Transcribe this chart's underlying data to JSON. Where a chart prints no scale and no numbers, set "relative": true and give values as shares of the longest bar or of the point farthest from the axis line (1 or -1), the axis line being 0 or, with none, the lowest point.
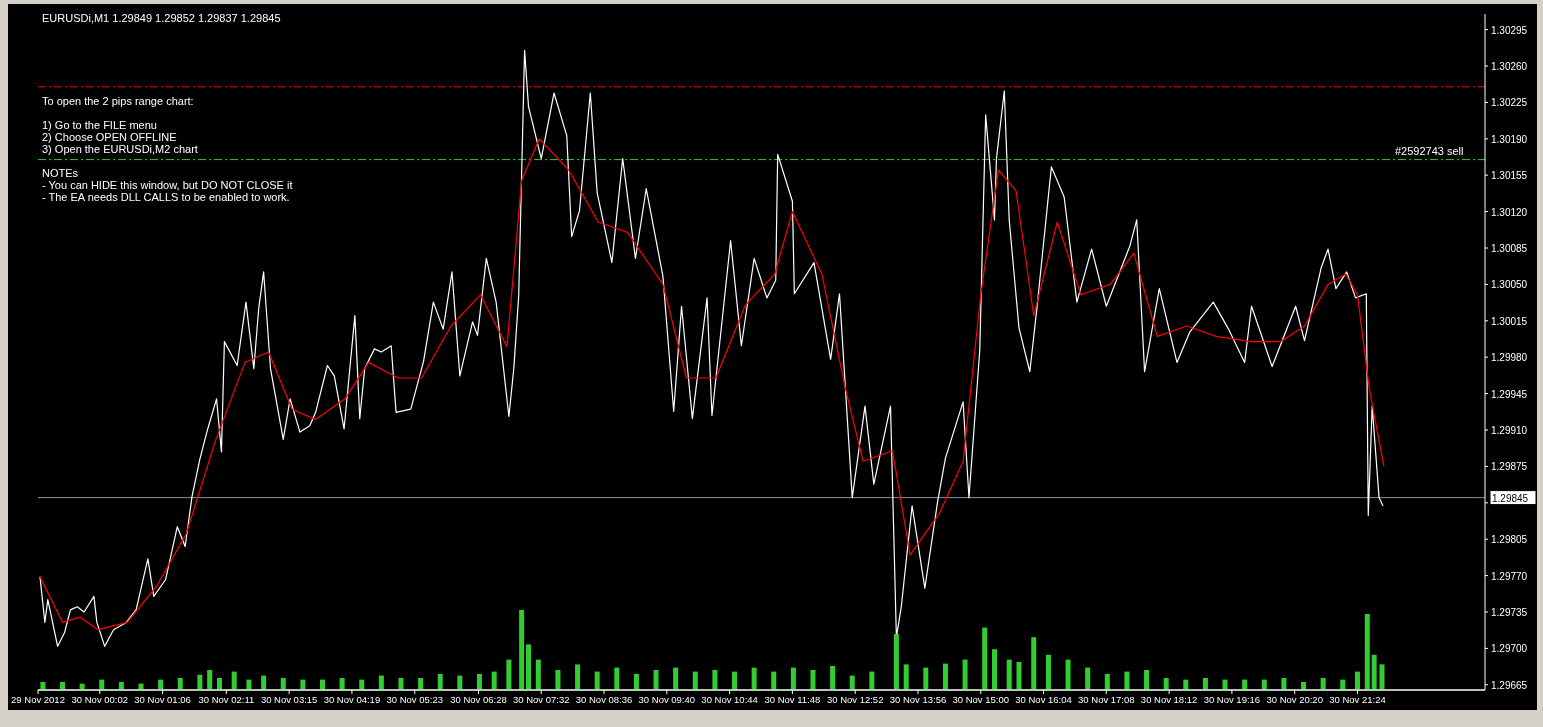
{
  "chart_data": [
    {
      "type": "line",
      "title": "EURUSDi,M1  1.29849 1.29852 1.29837 1.29845",
      "annotations": [
        "To open the 2 pips range chart:",
        "1) Go to the FILE menu",
        "2) Choose OPEN OFFLINE",
        "3) Open the EURUSDi,M2 chart",
        "NOTEs",
        "- You can HIDE this window, but DO NOT CLOSE it",
        "- The EA needs DLL CALLS to be enabled to work."
      ],
      "xlim": [
        "2012-11-29T22:59",
        "2012-11-30T23:34"
      ],
      "xticks": [
        {
          "value": "2012-11-29T22:59",
          "label": "29 Nov 2012"
        },
        {
          "value": "2012-11-30T00:02",
          "label": "30 Nov 00:02"
        },
        {
          "value": "2012-11-30T01:06",
          "label": "30 Nov 01:06"
        },
        {
          "value": "2012-11-30T02:11",
          "label": "30 Nov 02:11"
        },
        {
          "value": "2012-11-30T03:15",
          "label": "30 Nov 03:15"
        },
        {
          "value": "2012-11-30T04:19",
          "label": "30 Nov 04:19"
        },
        {
          "value": "2012-11-30T05:23",
          "label": "30 Nov 05:23"
        },
        {
          "value": "2012-11-30T06:28",
          "label": "30 Nov 06:28"
        },
        {
          "value": "2012-11-30T07:32",
          "label": "30 Nov 07:32"
        },
        {
          "value": "2012-11-30T08:36",
          "label": "30 Nov 08:36"
        },
        {
          "value": "2012-11-30T09:40",
          "label": "30 Nov 09:40"
        },
        {
          "value": "2012-11-30T10:44",
          "label": "30 Nov 10:44"
        },
        {
          "value": "2012-11-30T11:48",
          "label": "30 Nov 11:48"
        },
        {
          "value": "2012-11-30T12:52",
          "label": "30 Nov 12:52"
        },
        {
          "value": "2012-11-30T13:56",
          "label": "30 Nov 13:56"
        },
        {
          "value": "2012-11-30T15:00",
          "label": "30 Nov 15:00"
        },
        {
          "value": "2012-11-30T16:04",
          "label": "30 Nov 16:04"
        },
        {
          "value": "2012-11-30T17:08",
          "label": "30 Nov 17:08"
        },
        {
          "value": "2012-11-30T18:12",
          "label": "30 Nov 18:12"
        },
        {
          "value": "2012-11-30T19:16",
          "label": "30 Nov 19:16"
        },
        {
          "value": "2012-11-30T20:20",
          "label": "30 Nov 20:20"
        },
        {
          "value": "2012-11-30T21:24",
          "label": "30 Nov 21:24"
        }
      ],
      "ylim": [
        1.2966,
        1.3031
      ],
      "yticks": [
        1.29665,
        {
          "value": 1.297,
          "label": "1.29700"
        },
        1.29735,
        {
          "value": 1.2977,
          "label": "1.29770"
        },
        1.29805,
        {
          "value": 1.2984,
          "label": null
        },
        1.29875,
        {
          "value": 1.2991,
          "label": "1.29910"
        },
        1.29945,
        {
          "value": 1.2998,
          "label": "1.29980"
        },
        1.30015,
        {
          "value": 1.3005,
          "label": "1.30050"
        },
        1.30085,
        {
          "value": 1.3012,
          "label": "1.30120"
        },
        1.30155,
        {
          "value": 1.3019,
          "label": "1.30190"
        },
        1.30225,
        {
          "value": 1.3026,
          "label": "1.30260"
        },
        1.30295
      ],
      "ref_lines": [
        {
          "axis": "y",
          "value": 1.3024,
          "color": "#ff0000",
          "line_style": "dashdot"
        },
        {
          "axis": "y",
          "value": 1.3017,
          "label": "#2592743 sell",
          "color": "#32cd32",
          "line_style": "dashdot"
        },
        {
          "axis": "y",
          "value": 1.29845,
          "label": "1.29845",
          "color": "#8090a8",
          "line_style": "solid"
        }
      ],
      "grid": false,
      "series": [
        {
          "color": "#ffffff",
          "x": [
            "2012-11-29T23:01",
            "2012-11-29T23:06",
            "2012-11-29T23:09",
            "2012-11-29T23:19",
            "2012-11-29T23:26",
            "2012-11-29T23:32",
            "2012-11-29T23:39",
            "2012-11-29T23:46",
            "2012-11-29T23:56",
            "2012-11-29T23:59",
            "2012-11-30T00:07",
            "2012-11-30T00:16",
            "2012-11-30T00:29",
            "2012-11-30T00:39",
            "2012-11-30T00:51",
            "2012-11-30T00:57",
            "2012-11-30T01:09",
            "2012-11-30T01:21",
            "2012-11-30T01:29",
            "2012-11-30T01:36",
            "2012-11-30T01:44",
            "2012-11-30T01:52",
            "2012-11-30T02:01",
            "2012-11-30T02:06",
            "2012-11-30T02:09",
            "2012-11-30T02:22",
            "2012-11-30T02:31",
            "2012-11-30T02:39",
            "2012-11-30T02:44",
            "2012-11-30T02:49",
            "2012-11-30T02:56",
            "2012-11-30T03:09",
            "2012-11-30T03:16",
            "2012-11-30T03:26",
            "2012-11-30T03:36",
            "2012-11-30T03:42",
            "2012-11-30T03:54",
            "2012-11-30T04:01",
            "2012-11-30T04:11",
            "2012-11-30T04:22",
            "2012-11-30T04:27",
            "2012-11-30T04:32",
            "2012-11-30T04:42",
            "2012-11-30T04:49",
            "2012-11-30T04:59",
            "2012-11-30T05:04",
            "2012-11-30T05:19",
            "2012-11-30T05:32",
            "2012-11-30T05:42",
            "2012-11-30T05:52",
            "2012-11-30T06:01",
            "2012-11-30T06:09",
            "2012-11-30T06:22",
            "2012-11-30T06:27",
            "2012-11-30T06:36",
            "2012-11-30T06:46",
            "2012-11-30T06:59",
            "2012-11-30T07:04",
            "2012-11-30T07:09",
            "2012-11-30T07:15",
            "2012-11-30T07:19",
            "2012-11-30T07:32",
            "2012-11-30T07:45",
            "2012-11-30T07:58",
            "2012-11-30T08:03",
            "2012-11-30T08:11",
            "2012-11-30T08:22",
            "2012-11-30T08:29",
            "2012-11-30T08:44",
            "2012-11-30T08:55",
            "2012-11-30T09:08",
            "2012-11-30T09:19",
            "2012-11-30T09:36",
            "2012-11-30T09:47",
            "2012-11-30T09:55",
            "2012-11-30T10:06",
            "2012-11-30T10:21",
            "2012-11-30T10:26",
            "2012-11-30T10:45",
            "2012-11-30T10:56",
            "2012-11-30T11:09",
            "2012-11-30T11:22",
            "2012-11-30T11:31",
            "2012-11-30T11:33",
            "2012-11-30T11:48",
            "2012-11-30T11:50",
            "2012-11-30T12:10",
            "2012-11-30T12:27",
            "2012-11-30T12:36",
            "2012-11-30T12:49",
            "2012-11-30T13:02",
            "2012-11-30T13:11",
            "2012-11-30T13:28",
            "2012-11-30T13:34",
            "2012-11-30T13:39",
            "2012-11-30T13:50",
            "2012-11-30T14:03",
            "2012-11-30T14:16",
            "2012-11-30T14:24",
            "2012-11-30T14:42",
            "2012-11-30T14:48",
            "2012-11-30T14:59",
            "2012-11-30T15:05",
            "2012-11-30T15:14",
            "2012-11-30T15:16",
            "2012-11-30T15:24",
            "2012-11-30T15:29",
            "2012-11-30T15:39",
            "2012-11-30T15:50",
            "2012-11-30T15:57",
            "2012-11-30T16:12",
            "2012-11-30T16:25",
            "2012-11-30T16:38",
            "2012-11-30T16:53",
            "2012-11-30T17:08",
            "2012-11-30T17:32",
            "2012-11-30T17:39",
            "2012-11-30T17:47",
            "2012-11-30T18:02",
            "2012-11-30T18:20",
            "2012-11-30T18:33",
            "2012-11-30T18:57",
            "2012-11-30T19:12",
            "2012-11-30T19:29",
            "2012-11-30T19:36",
            "2012-11-30T19:57",
            "2012-11-30T20:21",
            "2012-11-30T20:30",
            "2012-11-30T20:47",
            "2012-11-30T20:54",
            "2012-11-30T21:02",
            "2012-11-30T21:13",
            "2012-11-30T21:22",
            "2012-11-30T21:33",
            "2012-11-30T21:35",
            "2012-11-30T21:39",
            "2012-11-30T21:46",
            "2012-11-30T21:50"
          ],
          "values": [
            1.29769,
            1.29725,
            1.29747,
            1.29702,
            1.29715,
            1.29737,
            1.2974,
            1.29735,
            1.2975,
            1.29725,
            1.29702,
            1.29718,
            1.29725,
            1.29737,
            1.29786,
            1.2975,
            1.29766,
            1.29817,
            1.29798,
            1.29846,
            1.29882,
            1.29911,
            1.2994,
            1.29889,
            1.29995,
            1.29972,
            1.30033,
            1.29969,
            1.30027,
            1.30062,
            1.29969,
            1.29901,
            1.2994,
            1.29908,
            1.29914,
            1.29927,
            1.29972,
            1.29962,
            1.29911,
            1.3002,
            1.29921,
            1.29969,
            1.29988,
            1.29985,
            1.29991,
            1.29927,
            1.2993,
            1.29976,
            1.30033,
            1.30007,
            1.30062,
            1.29962,
            1.30014,
            1.30001,
            1.30075,
            1.30033,
            1.29923,
            1.29969,
            1.30039,
            1.30275,
            1.30221,
            1.30171,
            1.30234,
            1.30193,
            1.30096,
            1.30121,
            1.30234,
            1.30138,
            1.30071,
            1.30171,
            1.30075,
            1.30142,
            1.30058,
            1.29928,
            1.30029,
            1.29921,
            1.30037,
            1.29924,
            1.30092,
            1.29991,
            1.30075,
            1.30037,
            1.30054,
            1.30175,
            1.3013,
            1.30041,
            1.30071,
            1.29978,
            1.30041,
            1.29845,
            1.29933,
            1.29858,
            1.29933,
            1.29711,
            1.2974,
            1.29837,
            1.29758,
            1.29841,
            1.29883,
            1.29937,
            1.29845,
            1.29987,
            1.30213,
            1.30112,
            1.30171,
            1.30236,
            1.30112,
            1.30008,
            1.29966,
            1.30025,
            1.30163,
            1.30134,
            1.30033,
            1.30084,
            1.30029,
            1.30087,
            1.30112,
            1.29966,
            1.30046,
            1.29975,
            1.30004,
            1.30033,
            1.30008,
            1.29975,
            1.30029,
            1.29971,
            1.30029,
            1.29996,
            1.30066,
            1.30084,
            1.30046,
            1.30062,
            1.30037,
            1.30041,
            1.29828,
            1.29933,
            1.29845,
            1.29837
          ]
        },
        {
          "color": "#ff0000",
          "x": [
            "2012-11-29T23:01",
            "2012-11-29T23:24",
            "2012-11-29T23:42",
            "2012-11-30T00:00",
            "2012-11-30T00:30",
            "2012-11-30T01:00",
            "2012-11-30T01:30",
            "2012-11-30T02:00",
            "2012-11-30T02:30",
            "2012-11-30T02:54",
            "2012-11-30T03:18",
            "2012-11-30T03:42",
            "2012-11-30T04:12",
            "2012-11-30T04:36",
            "2012-11-30T05:06",
            "2012-11-30T05:30",
            "2012-11-30T06:00",
            "2012-11-30T06:30",
            "2012-11-30T06:57",
            "2012-11-30T07:12",
            "2012-11-30T07:30",
            "2012-11-30T08:00",
            "2012-11-30T08:30",
            "2012-11-30T09:00",
            "2012-11-30T09:36",
            "2012-11-30T10:00",
            "2012-11-30T10:30",
            "2012-11-30T11:00",
            "2012-11-30T11:30",
            "2012-11-30T11:48",
            "2012-11-30T12:18",
            "2012-11-30T12:42",
            "2012-11-30T13:00",
            "2012-11-30T13:30",
            "2012-11-30T13:48",
            "2012-11-30T14:18",
            "2012-11-30T14:42",
            "2012-11-30T15:00",
            "2012-11-30T15:18",
            "2012-11-30T15:36",
            "2012-11-30T15:54",
            "2012-11-30T16:18",
            "2012-11-30T16:42",
            "2012-11-30T17:12",
            "2012-11-30T17:36",
            "2012-11-30T18:00",
            "2012-11-30T18:30",
            "2012-11-30T19:00",
            "2012-11-30T19:36",
            "2012-11-30T20:06",
            "2012-11-30T20:30",
            "2012-11-30T20:54",
            "2012-11-30T21:12",
            "2012-11-30T21:24",
            "2012-11-30T21:36",
            "2012-11-30T21:51"
          ],
          "values": [
            1.29769,
            1.29725,
            1.2973,
            1.29718,
            1.29725,
            1.2976,
            1.2981,
            1.299,
            1.29975,
            1.29985,
            1.2993,
            1.2992,
            1.2994,
            1.29975,
            1.2996,
            1.2996,
            1.3001,
            1.3004,
            1.2999,
            1.3015,
            1.3019,
            1.3016,
            1.3011,
            1.301,
            1.3005,
            1.2996,
            1.2996,
            1.3003,
            1.3006,
            1.3012,
            1.3006,
            1.2995,
            1.2988,
            1.2989,
            1.2979,
            1.2983,
            1.2988,
            1.3004,
            1.3016,
            1.3014,
            1.3002,
            1.3011,
            1.3004,
            1.3005,
            1.3008,
            1.3,
            1.3001,
            1.3,
            1.29995,
            1.29995,
            1.3001,
            1.3005,
            1.3006,
            1.3004,
            1.2995,
            1.29875
          ]
        }
      ]
    },
    {
      "type": "bar",
      "relative": true,
      "xlim": [
        "2012-11-29T22:59",
        "2012-11-30T23:34"
      ],
      "series": [
        {
          "color": "#32cd32",
          "x": [
            "2012-11-29T23:04",
            "2012-11-29T23:24",
            "2012-11-29T23:44",
            "2012-11-30T00:04",
            "2012-11-30T00:24",
            "2012-11-30T00:44",
            "2012-11-30T01:04",
            "2012-11-30T01:24",
            "2012-11-30T01:44",
            "2012-11-30T01:54",
            "2012-11-30T02:04",
            "2012-11-30T02:19",
            "2012-11-30T02:34",
            "2012-11-30T02:49",
            "2012-11-30T03:09",
            "2012-11-30T03:29",
            "2012-11-30T03:49",
            "2012-11-30T04:09",
            "2012-11-30T04:29",
            "2012-11-30T04:49",
            "2012-11-30T05:09",
            "2012-11-30T05:29",
            "2012-11-30T05:49",
            "2012-11-30T06:09",
            "2012-11-30T06:29",
            "2012-11-30T06:44",
            "2012-11-30T06:59",
            "2012-11-30T07:12",
            "2012-11-30T07:19",
            "2012-11-30T07:29",
            "2012-11-30T07:49",
            "2012-11-30T08:09",
            "2012-11-30T08:29",
            "2012-11-30T08:49",
            "2012-11-30T09:09",
            "2012-11-30T09:29",
            "2012-11-30T09:49",
            "2012-11-30T10:09",
            "2012-11-30T10:29",
            "2012-11-30T10:49",
            "2012-11-30T11:09",
            "2012-11-30T11:29",
            "2012-11-30T11:49",
            "2012-11-30T12:09",
            "2012-11-30T12:29",
            "2012-11-30T12:49",
            "2012-11-30T13:09",
            "2012-11-30T13:34",
            "2012-11-30T13:44",
            "2012-11-30T14:04",
            "2012-11-30T14:24",
            "2012-11-30T14:44",
            "2012-11-30T15:04",
            "2012-11-30T15:14",
            "2012-11-30T15:29",
            "2012-11-30T15:39",
            "2012-11-30T15:54",
            "2012-11-30T16:09",
            "2012-11-30T16:29",
            "2012-11-30T16:49",
            "2012-11-30T17:09",
            "2012-11-30T17:29",
            "2012-11-30T17:49",
            "2012-11-30T18:09",
            "2012-11-30T18:29",
            "2012-11-30T18:49",
            "2012-11-30T19:09",
            "2012-11-30T19:29",
            "2012-11-30T19:49",
            "2012-11-30T20:09",
            "2012-11-30T20:29",
            "2012-11-30T20:49",
            "2012-11-30T21:09",
            "2012-11-30T21:24",
            "2012-11-30T21:34",
            "2012-11-30T21:41",
            "2012-11-30T21:49"
          ],
          "values": [
            0.1,
            0.1,
            0.08,
            0.13,
            0.1,
            0.08,
            0.13,
            0.15,
            0.19,
            0.25,
            0.15,
            0.23,
            0.13,
            0.18,
            0.15,
            0.13,
            0.13,
            0.15,
            0.13,
            0.18,
            0.15,
            0.15,
            0.2,
            0.18,
            0.2,
            0.23,
            0.38,
            1,
            0.57,
            0.38,
            0.25,
            0.32,
            0.23,
            0.28,
            0.2,
            0.25,
            0.28,
            0.23,
            0.25,
            0.23,
            0.28,
            0.23,
            0.28,
            0.25,
            0.3,
            0.18,
            0.23,
            0.7,
            0.32,
            0.28,
            0.33,
            0.38,
            0.78,
            0.51,
            0.38,
            0.35,
            0.66,
            0.44,
            0.38,
            0.28,
            0.2,
            0.23,
            0.25,
            0.15,
            0.13,
            0.15,
            0.13,
            0.13,
            0.13,
            0.15,
            0.1,
            0.15,
            0.13,
            0.23,
            0.95,
            0.44,
            0.32
          ]
        }
      ]
    }
  ]
}
